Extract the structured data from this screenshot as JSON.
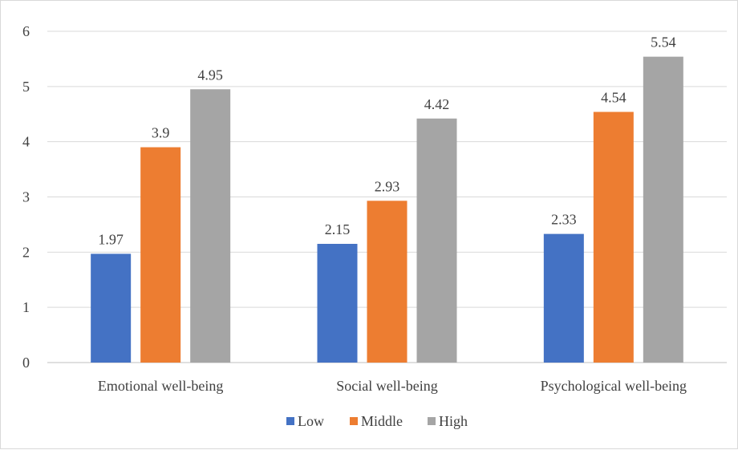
{
  "chart_data": {
    "type": "bar",
    "categories": [
      "Emotional well-being",
      "Social well-being",
      "Psychological well-being"
    ],
    "series": [
      {
        "name": "Low",
        "values": [
          1.97,
          2.15,
          2.33
        ],
        "color": "#4472c4"
      },
      {
        "name": "Middle",
        "values": [
          3.9,
          2.93,
          4.54
        ],
        "color": "#ed7d31"
      },
      {
        "name": "High",
        "values": [
          4.95,
          4.42,
          5.54
        ],
        "color": "#a5a5a5"
      }
    ],
    "data_labels": [
      [
        "1.97",
        "2.15",
        "2.33"
      ],
      [
        "3.9",
        "2.93",
        "4.54"
      ],
      [
        "4.95",
        "4.42",
        "5.54"
      ]
    ],
    "yticks": [
      "0",
      "1",
      "2",
      "3",
      "4",
      "5",
      "6"
    ],
    "ylim": [
      0,
      6
    ],
    "grid": true,
    "legend_position": "bottom",
    "title": "",
    "xlabel": "",
    "ylabel": ""
  }
}
